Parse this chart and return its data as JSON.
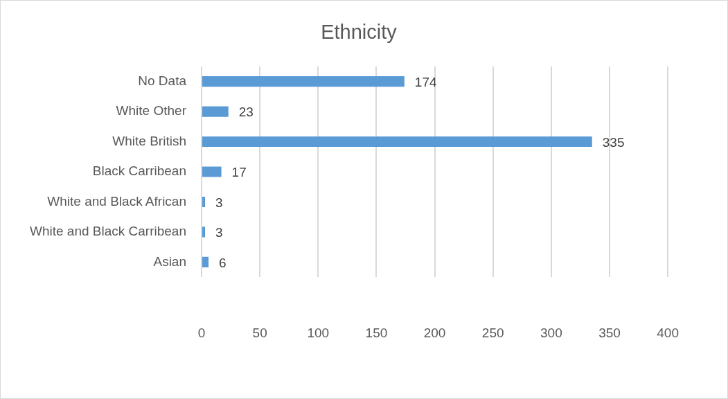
{
  "chart_data": {
    "type": "bar",
    "orientation": "horizontal",
    "title": "Ethnicity",
    "categories": [
      "No Data",
      "White Other",
      "White British",
      "Black Carribean",
      "White and Black African",
      "White and Black Carribean",
      "Asian"
    ],
    "values": [
      174,
      23,
      335,
      17,
      3,
      3,
      6
    ],
    "color": "#5b9bd5",
    "xlim": [
      0,
      400
    ],
    "xticks": [
      0,
      50,
      100,
      150,
      200,
      250,
      300,
      350,
      400
    ],
    "grid": "x",
    "data_labels": true,
    "legend": false
  }
}
